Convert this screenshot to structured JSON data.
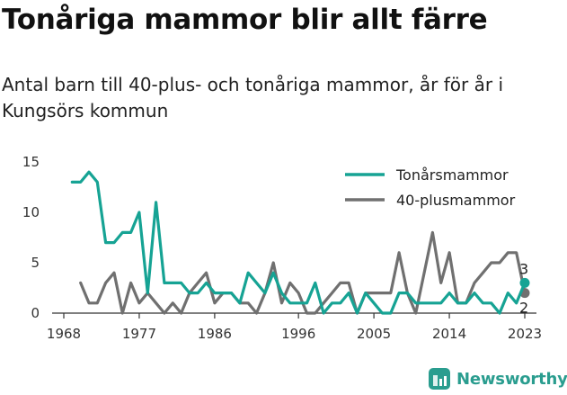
{
  "title": "Tonåriga mammor blir allt färre",
  "subtitle": "Antal barn till 40-plus- och tonåriga mammor, år för år i Kungsörs kommun",
  "brand": {
    "name": "Newsworthy",
    "icon": "newsworthy-logo-icon"
  },
  "colors": {
    "teen": "#16a394",
    "forty": "#707070",
    "brand": "#2a9d8f",
    "axis": "#333333"
  },
  "chart_data": {
    "type": "line",
    "title": "Tonåriga mammor blir allt färre",
    "subtitle": "Antal barn till 40-plus- och tonåriga mammor, år för år i Kungsörs kommun",
    "xlabel": "",
    "ylabel": "",
    "xlim": [
      1968,
      2023
    ],
    "ylim": [
      0,
      15
    ],
    "x_ticks": [
      "1968",
      "1977",
      "1986",
      "1996",
      "2005",
      "2014",
      "2023"
    ],
    "y_ticks": [
      "0",
      "5",
      "10",
      "15"
    ],
    "grid": false,
    "legend_position": "top-right",
    "series": [
      {
        "name": "Tonårsmammor",
        "color": "#16a394",
        "end_label": "3",
        "points": [
          [
            1969,
            13
          ],
          [
            1970,
            13
          ],
          [
            1971,
            14
          ],
          [
            1972,
            13
          ],
          [
            1973,
            7
          ],
          [
            1974,
            7
          ],
          [
            1975,
            8
          ],
          [
            1976,
            8
          ],
          [
            1977,
            10
          ],
          [
            1978,
            2
          ],
          [
            1979,
            11
          ],
          [
            1980,
            3
          ],
          [
            1981,
            3
          ],
          [
            1982,
            3
          ],
          [
            1983,
            2
          ],
          [
            1984,
            2
          ],
          [
            1985,
            3
          ],
          [
            1986,
            2
          ],
          [
            1987,
            2
          ],
          [
            1988,
            2
          ],
          [
            1989,
            1
          ],
          [
            1990,
            4
          ],
          [
            1991,
            3
          ],
          [
            1992,
            2
          ],
          [
            1993,
            4
          ],
          [
            1994,
            2
          ],
          [
            1995,
            1
          ],
          [
            1996,
            1
          ],
          [
            1997,
            1
          ],
          [
            1998,
            3
          ],
          [
            1999,
            0
          ],
          [
            2000,
            1
          ],
          [
            2001,
            1
          ],
          [
            2002,
            2
          ],
          [
            2003,
            0
          ],
          [
            2004,
            2
          ],
          [
            2005,
            1
          ],
          [
            2006,
            0
          ],
          [
            2007,
            0
          ],
          [
            2008,
            2
          ],
          [
            2009,
            2
          ],
          [
            2010,
            1
          ],
          [
            2011,
            1
          ],
          [
            2012,
            1
          ],
          [
            2013,
            1
          ],
          [
            2014,
            2
          ],
          [
            2015,
            1
          ],
          [
            2016,
            1
          ],
          [
            2017,
            2
          ],
          [
            2018,
            1
          ],
          [
            2019,
            1
          ],
          [
            2020,
            0
          ],
          [
            2021,
            2
          ],
          [
            2022,
            1
          ],
          [
            2023,
            3
          ]
        ]
      },
      {
        "name": "40-plusmammor",
        "color": "#707070",
        "end_label": "2",
        "points": [
          [
            1970,
            3
          ],
          [
            1971,
            1
          ],
          [
            1972,
            1
          ],
          [
            1973,
            3
          ],
          [
            1974,
            4
          ],
          [
            1975,
            0
          ],
          [
            1976,
            3
          ],
          [
            1977,
            1
          ],
          [
            1978,
            2
          ],
          [
            1979,
            1
          ],
          [
            1980,
            0
          ],
          [
            1981,
            1
          ],
          [
            1982,
            0
          ],
          [
            1983,
            2
          ],
          [
            1984,
            3
          ],
          [
            1985,
            4
          ],
          [
            1986,
            1
          ],
          [
            1987,
            2
          ],
          [
            1988,
            2
          ],
          [
            1989,
            1
          ],
          [
            1990,
            1
          ],
          [
            1991,
            0
          ],
          [
            1992,
            2
          ],
          [
            1993,
            5
          ],
          [
            1994,
            1
          ],
          [
            1995,
            3
          ],
          [
            1996,
            2
          ],
          [
            1997,
            0
          ],
          [
            1998,
            0
          ],
          [
            1999,
            1
          ],
          [
            2000,
            2
          ],
          [
            2001,
            3
          ],
          [
            2002,
            3
          ],
          [
            2003,
            0
          ],
          [
            2004,
            2
          ],
          [
            2005,
            2
          ],
          [
            2006,
            2
          ],
          [
            2007,
            2
          ],
          [
            2008,
            6
          ],
          [
            2009,
            2
          ],
          [
            2010,
            0
          ],
          [
            2011,
            4
          ],
          [
            2012,
            8
          ],
          [
            2013,
            3
          ],
          [
            2014,
            6
          ],
          [
            2015,
            1
          ],
          [
            2016,
            1
          ],
          [
            2017,
            3
          ],
          [
            2018,
            4
          ],
          [
            2019,
            5
          ],
          [
            2020,
            5
          ],
          [
            2021,
            6
          ],
          [
            2022,
            6
          ],
          [
            2023,
            2
          ]
        ]
      }
    ]
  }
}
